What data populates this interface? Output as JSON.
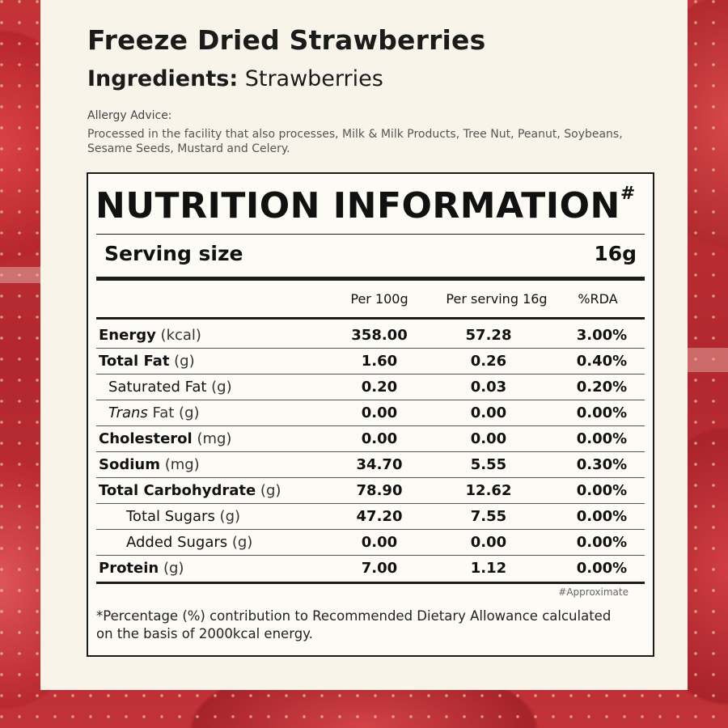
{
  "product": {
    "name": "Freeze Dried Strawberries",
    "ingredients_label": "Ingredients:",
    "ingredients_value": "Strawberries"
  },
  "allergy": {
    "title": "Allergy Advice:",
    "text": "Processed in the facility that also processes, Milk & Milk Products, Tree Nut, Peanut, Soybeans, Sesame Seeds, Mustard and Celery."
  },
  "panel": {
    "title": "NUTRITION INFORMATION",
    "title_mark": "#",
    "serving_label": "Serving size",
    "serving_value": "16g",
    "columns": [
      "Per 100g",
      "Per serving 16g",
      "%RDA"
    ],
    "rows": [
      {
        "name": "Energy",
        "unit": " (kcal)",
        "per100": "358.00",
        "perServing": "57.28",
        "rda": "3.00%"
      },
      {
        "name": "Total Fat",
        "unit": " (g)",
        "per100": "1.60",
        "perServing": "0.26",
        "rda": "0.40%"
      },
      {
        "name": "Saturated Fat",
        "unit": " (g)",
        "per100": "0.20",
        "perServing": "0.03",
        "rda": "0.20%"
      },
      {
        "name": "Trans",
        "unit": " Fat (g)",
        "per100": "0.00",
        "perServing": "0.00",
        "rda": "0.00%"
      },
      {
        "name": "Cholesterol",
        "unit": " (mg)",
        "per100": "0.00",
        "perServing": "0.00",
        "rda": "0.00%"
      },
      {
        "name": "Sodium",
        "unit": " (mg)",
        "per100": "34.70",
        "perServing": "5.55",
        "rda": "0.30%"
      },
      {
        "name": "Total Carbohydrate",
        "unit": " (g)",
        "per100": "78.90",
        "perServing": "12.62",
        "rda": "0.00%"
      },
      {
        "name": "Total Sugars",
        "unit": " (g)",
        "per100": "47.20",
        "perServing": "7.55",
        "rda": "0.00%"
      },
      {
        "name": "Added Sugars",
        "unit": " (g)",
        "per100": "0.00",
        "perServing": "0.00",
        "rda": "0.00%"
      },
      {
        "name": "Protein",
        "unit": " (g)",
        "per100": "7.00",
        "perServing": "1.12",
        "rda": "0.00%"
      }
    ],
    "approx_note": "#Approximate",
    "footnote": "*Percentage (%) contribution to Recommended Dietary Allowance calculated on the basis of 2000kcal energy."
  }
}
